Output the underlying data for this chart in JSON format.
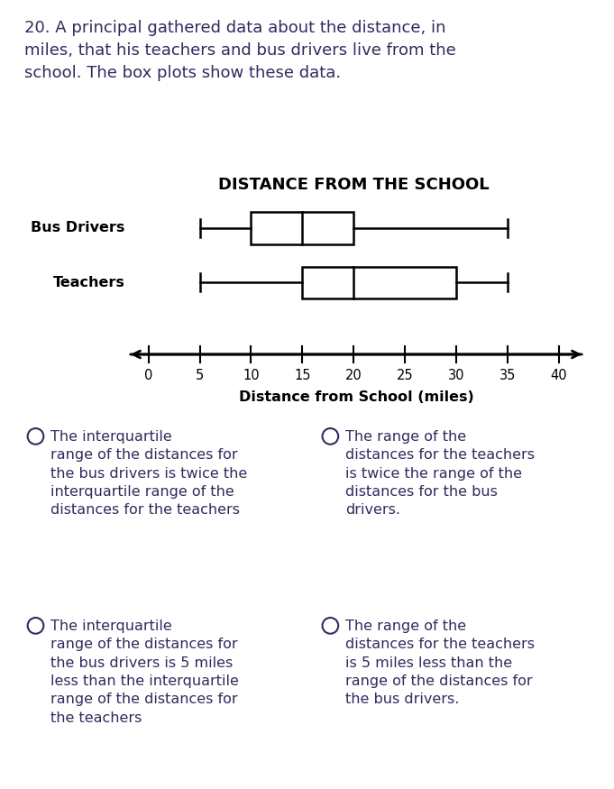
{
  "title": "DISTANCE FROM THE SCHOOL",
  "xlabel": "Distance from School (miles)",
  "question_text": "20. A principal gathered data about the distance, in\nmiles, that his teachers and bus drivers live from the\nschool. The box plots show these data.",
  "bus_drivers": {
    "min": 5,
    "q1": 10,
    "median": 15,
    "q3": 20,
    "max": 35
  },
  "teachers": {
    "min": 5,
    "q1": 15,
    "median": 20,
    "q3": 30,
    "max": 35
  },
  "x_ticks": [
    0,
    5,
    10,
    15,
    20,
    25,
    30,
    35,
    40
  ],
  "answer_options": [
    {
      "text": "The interquartile\nrange of the distances for\nthe bus drivers is twice the\ninterquartile range of the\ndistances for the teachers",
      "col": 0,
      "row": 0
    },
    {
      "text": "The range of the\ndistances for the teachers\nis twice the range of the\ndistances for the bus\ndrivers.",
      "col": 1,
      "row": 0
    },
    {
      "text": "The interquartile\nrange of the distances for\nthe bus drivers is 5 miles\nless than the interquartile\nrange of the distances for\nthe teachers",
      "col": 0,
      "row": 1
    },
    {
      "text": "The range of the\ndistances for the teachers\nis 5 miles less than the\nrange of the distances for\nthe bus drivers.",
      "col": 1,
      "row": 1
    }
  ],
  "text_color": "#2d2d5e",
  "background_color": "#ffffff",
  "box_color": "#000000",
  "box_fill": "#ffffff",
  "fig_width": 6.81,
  "fig_height": 8.75,
  "dpi": 100
}
